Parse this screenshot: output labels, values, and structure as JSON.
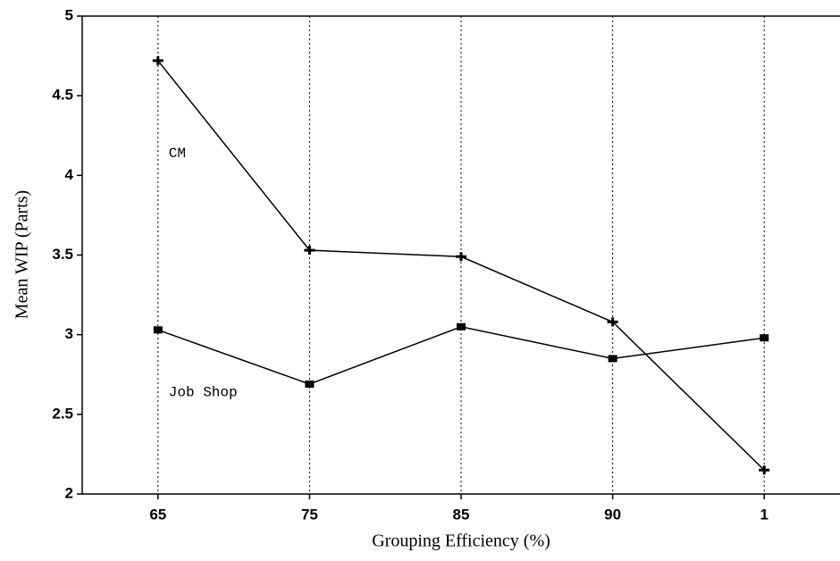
{
  "chart_data": {
    "type": "line",
    "x_label": "Grouping Efficiency (%)",
    "y_label": "Mean WIP (Parts)",
    "categories": [
      "65",
      "75",
      "85",
      "90",
      "1"
    ],
    "series": [
      {
        "name": "CM",
        "color": "#000000",
        "marker": "plus",
        "values": [
          4.72,
          3.53,
          3.49,
          3.08,
          2.15
        ]
      },
      {
        "name": "Job Shop",
        "color": "#000000",
        "marker": "square",
        "values": [
          3.03,
          2.69,
          3.05,
          2.85,
          2.98
        ]
      }
    ],
    "ylim": [
      2,
      5
    ],
    "yticks": [
      2,
      2.5,
      3,
      3.5,
      4,
      4.5,
      5
    ],
    "grid": true
  }
}
